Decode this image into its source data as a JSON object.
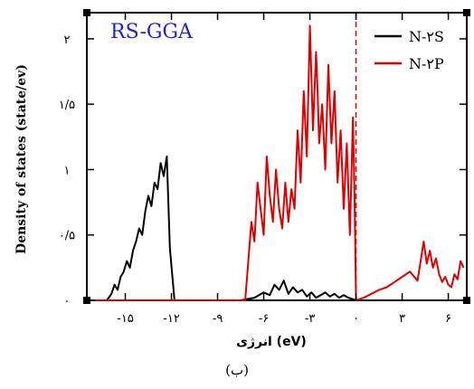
{
  "chart_data": {
    "type": "line",
    "title": "RS-GGA",
    "title_color": "#1f1fe0",
    "xlabel": "انرژی (eV)",
    "ylabel": "Density of states (state/ev)",
    "xlim": [
      -17.5,
      7.2
    ],
    "ylim": [
      0,
      2.2
    ],
    "x_ticks": [
      -15,
      -12,
      -9,
      -6,
      -3,
      0,
      3,
      6
    ],
    "x_tick_labels": [
      "-۱۵",
      "-۱۲",
      "-۹",
      "-۶",
      "-۳",
      "۰",
      "۳",
      "۶"
    ],
    "y_ticks": [
      0,
      0.5,
      1,
      1.5,
      2
    ],
    "y_tick_labels": [
      "۰",
      "۰/۵",
      "۱",
      "۱/۵",
      "۲"
    ],
    "grid": false,
    "legend_position": "top-right",
    "fermi_level": 0,
    "fermi_line_color": "#e00000",
    "series": [
      {
        "name": "N-۲S",
        "color": "#000000",
        "x": [
          -17,
          -16.2,
          -15.9,
          -15.7,
          -15.5,
          -15.3,
          -15.1,
          -14.9,
          -14.7,
          -14.5,
          -14.3,
          -14.1,
          -13.9,
          -13.7,
          -13.5,
          -13.3,
          -13.1,
          -12.9,
          -12.7,
          -12.5,
          -12.3,
          -12.1,
          -11.8,
          -11.5,
          -10.5,
          -9.0,
          -7.5,
          -6.6,
          -6.0,
          -5.6,
          -5.3,
          -5.0,
          -4.7,
          -4.4,
          -4.1,
          -3.8,
          -3.5,
          -3.2,
          -2.9,
          -2.6,
          -2.3,
          -2.0,
          -1.7,
          -1.4,
          -1.1,
          -0.8,
          -0.5,
          0,
          1,
          2,
          3,
          4,
          5,
          6,
          7
        ],
        "y": [
          0,
          0,
          0.05,
          0.12,
          0.08,
          0.18,
          0.22,
          0.3,
          0.25,
          0.38,
          0.45,
          0.55,
          0.5,
          0.68,
          0.8,
          0.72,
          0.9,
          0.85,
          1.05,
          0.95,
          1.1,
          0.4,
          0,
          0,
          0,
          0,
          0,
          0.02,
          0.06,
          0.04,
          0.12,
          0.08,
          0.15,
          0.05,
          0.1,
          0.06,
          0.08,
          0.03,
          0.06,
          0.02,
          0.04,
          0.06,
          0.03,
          0.05,
          0.02,
          0.04,
          0.02,
          0,
          0,
          0,
          0,
          0,
          0,
          0,
          0
        ]
      },
      {
        "name": "N-۲P",
        "color": "#e00000",
        "x": [
          -17,
          -15.5,
          -14.5,
          -13.5,
          -12.5,
          -12,
          -10,
          -8,
          -7.2,
          -7.0,
          -6.8,
          -6.6,
          -6.4,
          -6.2,
          -6.0,
          -5.8,
          -5.6,
          -5.4,
          -5.2,
          -5.0,
          -4.8,
          -4.6,
          -4.4,
          -4.2,
          -4.0,
          -3.8,
          -3.6,
          -3.4,
          -3.2,
          -3.0,
          -2.8,
          -2.6,
          -2.5,
          -2.4,
          -2.2,
          -2.0,
          -1.8,
          -1.6,
          -1.4,
          -1.2,
          -1.0,
          -0.8,
          -0.6,
          -0.4,
          -0.2,
          -0.1,
          0,
          0.5,
          1.0,
          1.5,
          2.0,
          2.5,
          3.0,
          3.5,
          4.0,
          4.2,
          4.4,
          4.6,
          4.8,
          5.0,
          5.2,
          5.4,
          5.6,
          5.8,
          6.0,
          6.2,
          6.4,
          6.6,
          6.8,
          7.0
        ],
        "y": [
          0,
          0,
          0,
          0,
          0,
          0,
          0,
          0,
          0,
          0.3,
          0.6,
          0.45,
          0.9,
          0.7,
          0.5,
          1.1,
          0.8,
          0.6,
          1.0,
          0.7,
          0.55,
          0.9,
          0.6,
          0.85,
          0.7,
          1.3,
          0.9,
          1.6,
          1.1,
          2.1,
          1.3,
          1.9,
          1.6,
          1.2,
          1.5,
          1.0,
          1.8,
          1.2,
          1.6,
          0.9,
          1.3,
          0.7,
          1.2,
          0.5,
          1.4,
          0.8,
          0,
          0.02,
          0.05,
          0.08,
          0.1,
          0.14,
          0.18,
          0.22,
          0.15,
          0.3,
          0.45,
          0.28,
          0.38,
          0.25,
          0.32,
          0.2,
          0.14,
          0.18,
          0.12,
          0.1,
          0.2,
          0.16,
          0.3,
          0.25
        ]
      }
    ]
  },
  "caption": "(ب)"
}
